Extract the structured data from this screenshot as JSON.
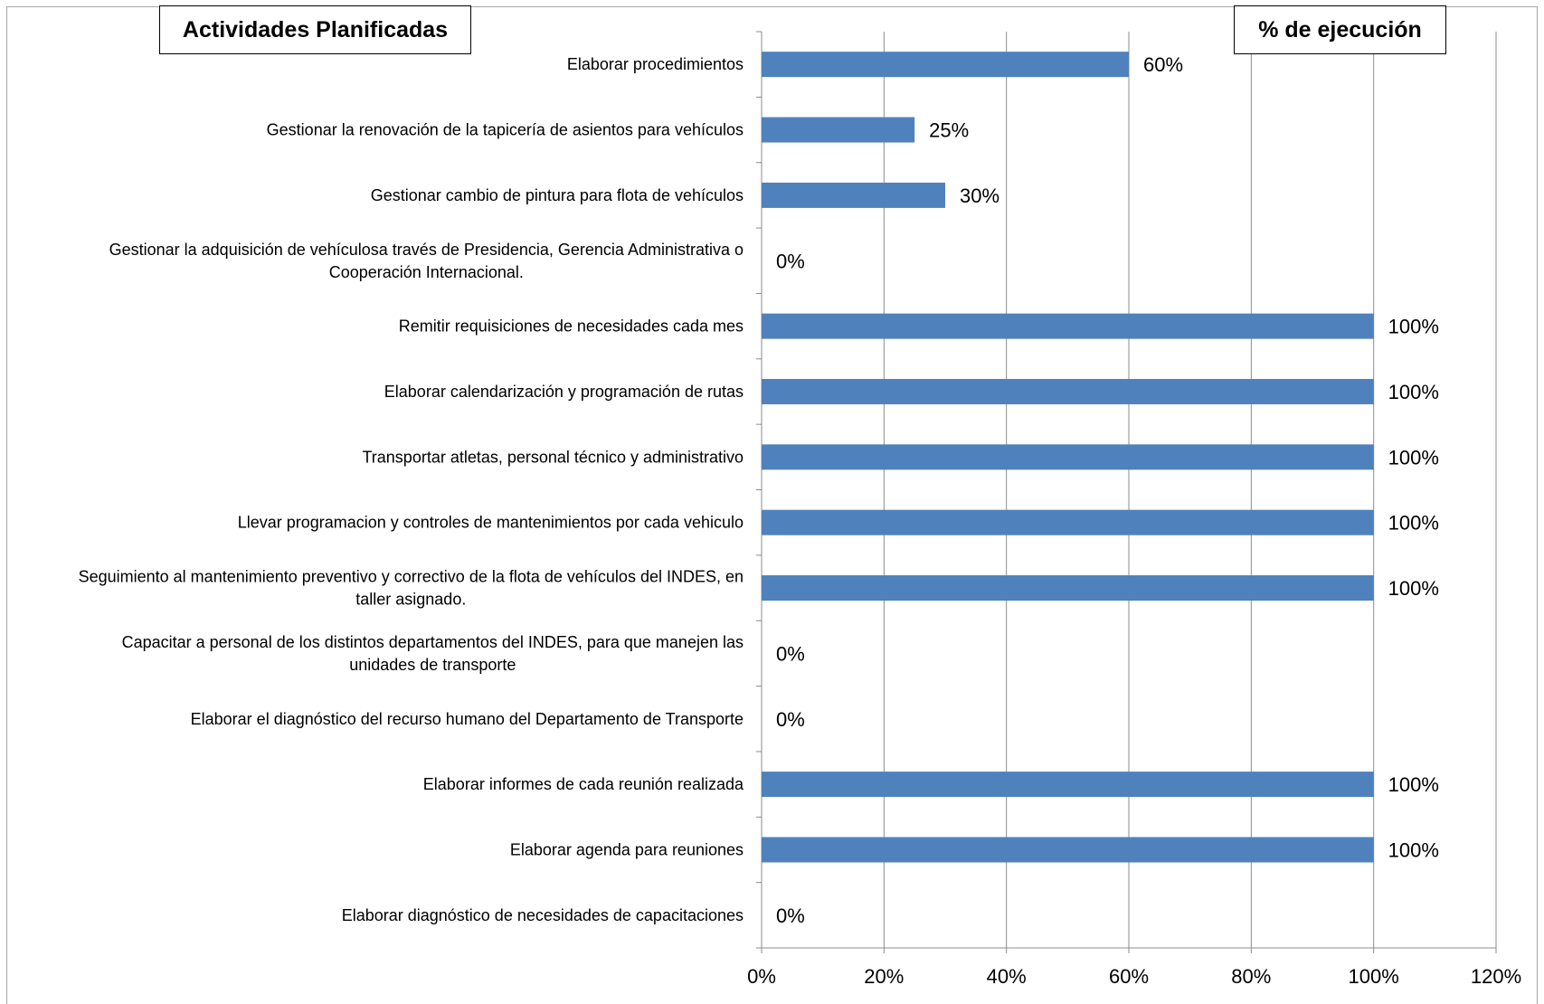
{
  "headers": {
    "left": "Actividades Planificadas",
    "right": "% de ejecución"
  },
  "colors": {
    "bar": "#4f81bd",
    "grid": "#8c8c8c",
    "axis": "#8c8c8c",
    "text": "#000000"
  },
  "chart_data": {
    "type": "bar",
    "orientation": "horizontal",
    "categories": [
      "Elaborar procedimientos",
      "Gestionar la renovación de la tapicería de asientos para vehículos",
      "Gestionar cambio de pintura para flota de vehículos",
      "Gestionar la adquisición de vehículosa través de Presidencia, Gerencia Administrativa o Cooperación Internacional.",
      "Remitir requisiciones de necesidades cada mes",
      "Elaborar calendarización y programación de rutas",
      "Transportar atletas, personal técnico y administrativo",
      "Llevar programacion y controles de mantenimientos por cada vehiculo",
      "Seguimiento al mantenimiento preventivo y correctivo de la flota de vehículos del INDES, en taller asignado.",
      "Capacitar a personal de los distintos departamentos del INDES, para que manejen las unidades de transporte",
      "Elaborar el diagnóstico del recurso humano del Departamento de Transporte",
      "Elaborar informes de cada reunión realizada",
      "Elaborar agenda para reuniones",
      "Elaborar diagnóstico de necesidades de capacitaciones"
    ],
    "category_lines": [
      [
        "Elaborar procedimientos"
      ],
      [
        "Gestionar la renovación de la tapicería de asientos para vehículos"
      ],
      [
        "Gestionar cambio de pintura para flota de vehículos"
      ],
      [
        "Gestionar la adquisición de vehículosa través de Presidencia, Gerencia Administrativa o",
        "Cooperación Internacional."
      ],
      [
        "Remitir requisiciones de necesidades cada mes"
      ],
      [
        "Elaborar calendarización y programación de rutas"
      ],
      [
        "Transportar atletas, personal técnico y administrativo"
      ],
      [
        "Llevar programacion y controles de mantenimientos por cada vehiculo"
      ],
      [
        "Seguimiento al mantenimiento preventivo y correctivo de la flota de vehículos del INDES, en",
        "taller asignado."
      ],
      [
        "Capacitar a personal de los distintos departamentos del INDES, para que manejen las",
        "unidades de transporte"
      ],
      [
        "Elaborar el diagnóstico del recurso humano del Departamento de Transporte"
      ],
      [
        "Elaborar informes de cada reunión realizada"
      ],
      [
        "Elaborar agenda para reuniones"
      ],
      [
        "Elaborar diagnóstico de necesidades de capacitaciones"
      ]
    ],
    "values": [
      60,
      25,
      30,
      0,
      100,
      100,
      100,
      100,
      100,
      0,
      0,
      100,
      100,
      0
    ],
    "data_labels": [
      "60%",
      "25%",
      "30%",
      "0%",
      "100%",
      "100%",
      "100%",
      "100%",
      "100%",
      "0%",
      "0%",
      "100%",
      "100%",
      "0%"
    ],
    "xlim": [
      0,
      120
    ],
    "xticks": [
      0,
      20,
      40,
      60,
      80,
      100,
      120
    ],
    "xtick_labels": [
      "0%",
      "20%",
      "40%",
      "60%",
      "80%",
      "100%",
      "120%"
    ],
    "grid": "vertical",
    "legend": "none"
  }
}
